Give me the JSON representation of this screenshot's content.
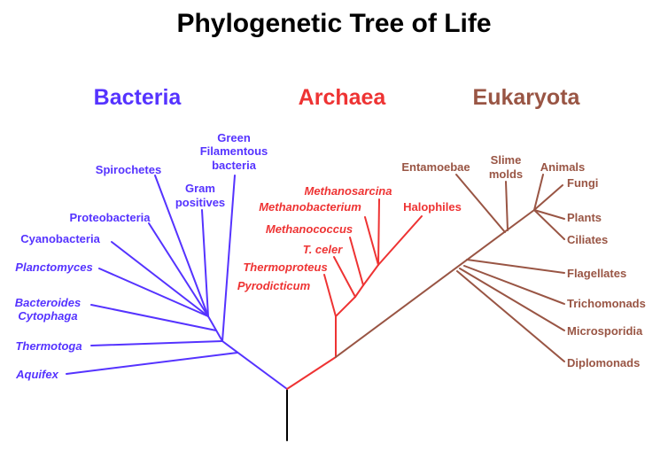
{
  "title": "Phylogenetic Tree of Life",
  "colors": {
    "root": "#000000",
    "bacteria": "#5533ff",
    "archaea": "#ee3333",
    "eukaryota": "#995544"
  },
  "domains": {
    "bacteria": {
      "label": "Bacteria",
      "leaves": {
        "green_filamentous": [
          "Green",
          "Filamentous",
          "bacteria"
        ],
        "spirochetes": "Spirochetes",
        "gram_positives": [
          "Gram",
          "positives"
        ],
        "proteobacteria": "Proteobacteria",
        "cyanobacteria": "Cyanobacteria",
        "planctomyces": "Planctomyces",
        "bacteroides": [
          "Bacteroides",
          "Cytophaga"
        ],
        "thermotoga": "Thermotoga",
        "aquifex": "Aquifex"
      }
    },
    "archaea": {
      "label": "Archaea",
      "leaves": {
        "methanosarcina": "Methanosarcina",
        "methanobacterium": "Methanobacterium",
        "halophiles": "Halophiles",
        "methanococcus": "Methanococcus",
        "t_celer": "T. celer",
        "thermoproteus": "Thermoproteus",
        "pyrodicticum": "Pyrodicticum"
      }
    },
    "eukaryota": {
      "label": "Eukaryota",
      "leaves": {
        "entamoebae": "Entamoebae",
        "slime_molds": [
          "Slime",
          "molds"
        ],
        "animals": "Animals",
        "fungi": "Fungi",
        "plants": "Plants",
        "ciliates": "Ciliates",
        "flagellates": "Flagellates",
        "trichomonads": "Trichomonads",
        "microsporidia": "Microsporidia",
        "diplomonads": "Diplomonads"
      }
    }
  }
}
